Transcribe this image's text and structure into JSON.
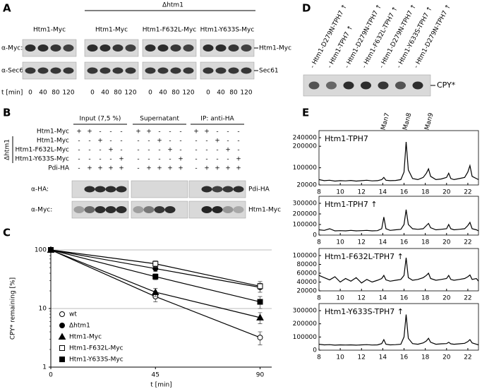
{
  "panel_a": {
    "label": "A",
    "mutant_label": "Δhtm1",
    "groups": [
      "Htm1-Myc",
      "Htm1-Myc",
      "Htm1-F632L-Myc",
      "Htm1-Y633S-Myc"
    ],
    "rows": [
      "α-Myc:",
      "α-Sec61:"
    ],
    "bands": [
      "Htm1-Myc",
      "Sec61"
    ],
    "time_label": "t [min]",
    "times": [
      0,
      40,
      80,
      120
    ]
  },
  "panel_b": {
    "label": "B",
    "groups": [
      "Input (7,5 %)",
      "Supernatant",
      "IP: anti-HA"
    ],
    "mutant_label": "Δhtm1",
    "rows": [
      {
        "name": "Htm1-Myc",
        "signs": [
          "+",
          "+",
          "-",
          "-",
          "-"
        ]
      },
      {
        "name": "Htm1-Myc",
        "signs": [
          "-",
          "-",
          "+",
          "-",
          "-"
        ]
      },
      {
        "name": "Htm1-F632L-Myc",
        "signs": [
          "-",
          "-",
          "-",
          "+",
          "-"
        ]
      },
      {
        "name": "Htm1-Y633S-Myc",
        "signs": [
          "-",
          "-",
          "-",
          "-",
          "+"
        ]
      },
      {
        "name": "Pdi-HA",
        "signs": [
          "-",
          "+",
          "+",
          "+",
          "+"
        ]
      }
    ],
    "blots": [
      "α-HA:",
      "α-Myc:"
    ],
    "bands": [
      "Pdi-HA",
      "Htm1-Myc"
    ]
  },
  "panel_c": {
    "label": "C"
  },
  "panel_d": {
    "label": "D",
    "band": "CPY*",
    "lanes": [
      "- Htm1-D279N-TPH7 ↑",
      "- Htm1-TPH7 ↑",
      "- Htm1-D279N-TPH7 ↑",
      "- Htm1-F632L-TPH7 ↑",
      "- Htm1-D279N-TPH7 ↑",
      "- Htm1-Y633S-TPH7 ↑",
      "- Htm1-D279N-TPH7 ↑"
    ]
  },
  "panel_e": {
    "label": "E",
    "peaks": [
      "Man7",
      "Man8",
      "Man9"
    ]
  },
  "chart_data": [
    {
      "type": "line",
      "x_label": "t [min]",
      "y_label": "CPY* remaining  [%]",
      "log_y": true,
      "grid": true,
      "x": [
        0,
        45,
        90
      ],
      "xlim": [
        0,
        95
      ],
      "xticks": [
        0,
        45,
        90
      ],
      "ylim": [
        1,
        100
      ],
      "yticks": [
        1,
        10,
        100
      ],
      "series": [
        {
          "name": "wt",
          "color": "#000000",
          "marker": "circle",
          "filled": false,
          "values": [
            100,
            16,
            3.2
          ],
          "errors": [
            0,
            3,
            0.8
          ]
        },
        {
          "name": "Δhtm1",
          "color": "#000000",
          "marker": "circle",
          "filled": true,
          "values": [
            100,
            48,
            23
          ],
          "errors": [
            0,
            5,
            4
          ]
        },
        {
          "name": "Htm1-Myc",
          "color": "#000000",
          "marker": "triangle",
          "filled": true,
          "values": [
            100,
            19,
            7
          ],
          "errors": [
            0,
            3,
            1.5
          ]
        },
        {
          "name": "Htm1-F632L-Myc",
          "color": "#000000",
          "marker": "square",
          "filled": false,
          "values": [
            100,
            58,
            24
          ],
          "errors": [
            0,
            7,
            5
          ]
        },
        {
          "name": "Htm1-Y633S-Myc",
          "color": "#000000",
          "marker": "square",
          "filled": true,
          "values": [
            100,
            35,
            13
          ],
          "errors": [
            0,
            4,
            3
          ]
        }
      ]
    },
    {
      "type": "trace",
      "title": "Htm1-TPH7",
      "color": "#000000",
      "xlim": [
        8,
        23
      ],
      "xticks": [
        8,
        10,
        12,
        14,
        16,
        18,
        20,
        22
      ],
      "ylim": [
        20000,
        240000
      ],
      "yticks": [
        20000,
        100000,
        200000,
        240000
      ],
      "x": [
        8,
        8.5,
        9,
        9.5,
        10,
        10.5,
        11,
        11.5,
        12,
        12.5,
        13,
        13.5,
        13.9,
        14.1,
        14.3,
        14.7,
        15.2,
        15.7,
        16.0,
        16.2,
        16.4,
        16.8,
        17.3,
        17.8,
        18.1,
        18.3,
        18.5,
        19,
        19.5,
        20,
        20.2,
        20.4,
        20.7,
        21.2,
        21.7,
        22.0,
        22.2,
        22.4,
        22.8,
        23
      ],
      "values": [
        45000,
        40000,
        42000,
        38000,
        40000,
        39000,
        41000,
        38000,
        40000,
        42000,
        39000,
        40000,
        45000,
        55000,
        42000,
        40000,
        41000,
        45000,
        80000,
        220000,
        90000,
        50000,
        45000,
        55000,
        75000,
        95000,
        60000,
        45000,
        48000,
        55000,
        75000,
        50000,
        45000,
        50000,
        55000,
        80000,
        110000,
        60000,
        50000,
        45000
      ]
    },
    {
      "type": "trace",
      "title": "Htm1-TPH7 ↑",
      "color": "#000000",
      "xlim": [
        8,
        23
      ],
      "xticks": [
        8,
        10,
        12,
        14,
        16,
        18,
        20,
        22
      ],
      "ylim": [
        0,
        300000
      ],
      "yticks": [
        0,
        100000,
        200000,
        300000
      ],
      "x": [
        8,
        8.5,
        9,
        9.5,
        10,
        10.5,
        11,
        11.5,
        12,
        12.5,
        13,
        13.5,
        13.9,
        14.1,
        14.3,
        14.7,
        15.2,
        15.7,
        16.0,
        16.2,
        16.4,
        16.8,
        17.3,
        17.8,
        18.1,
        18.3,
        18.5,
        19,
        19.5,
        20,
        20.2,
        20.4,
        20.7,
        21.2,
        21.7,
        22.0,
        22.2,
        22.4,
        22.8,
        23
      ],
      "values": [
        50000,
        45000,
        60000,
        40000,
        42000,
        40000,
        45000,
        40000,
        42000,
        45000,
        40000,
        42000,
        60000,
        170000,
        60000,
        45000,
        50000,
        55000,
        100000,
        240000,
        100000,
        60000,
        55000,
        60000,
        90000,
        110000,
        70000,
        50000,
        55000,
        60000,
        100000,
        60000,
        50000,
        55000,
        60000,
        90000,
        120000,
        60000,
        50000,
        40000
      ]
    },
    {
      "type": "trace",
      "title": "Htm1-F632L-TPH7 ↑",
      "color": "#000000",
      "xlim": [
        8,
        23
      ],
      "xticks": [
        8,
        10,
        12,
        14,
        16,
        18,
        20,
        22
      ],
      "ylim": [
        20000,
        100000
      ],
      "yticks": [
        20000,
        40000,
        60000,
        80000,
        100000
      ],
      "x": [
        8,
        8.5,
        9,
        9.5,
        10,
        10.5,
        11,
        11.5,
        12,
        12.5,
        13,
        13.5,
        13.9,
        14.1,
        14.3,
        14.7,
        15.2,
        15.7,
        16.0,
        16.2,
        16.4,
        16.8,
        17.3,
        17.8,
        18.1,
        18.3,
        18.5,
        19,
        19.5,
        20,
        20.2,
        20.4,
        20.7,
        21.2,
        21.7,
        22.0,
        22.2,
        22.4,
        22.8,
        23
      ],
      "values": [
        55000,
        50000,
        45000,
        52000,
        40000,
        48000,
        42000,
        50000,
        38000,
        46000,
        40000,
        44000,
        48000,
        55000,
        45000,
        42000,
        44000,
        46000,
        55000,
        95000,
        50000,
        44000,
        46000,
        50000,
        55000,
        60000,
        48000,
        44000,
        46000,
        48000,
        55000,
        46000,
        44000,
        46000,
        48000,
        52000,
        56000,
        46000,
        48000,
        42000
      ]
    },
    {
      "type": "trace",
      "title": "Htm1-Y633S-TPH7 ↑",
      "color": "#000000",
      "xlim": [
        8,
        23
      ],
      "xticks": [
        8,
        10,
        12,
        14,
        16,
        18,
        20,
        22
      ],
      "ylim": [
        0,
        300000
      ],
      "yticks": [
        0,
        100000,
        200000,
        300000
      ],
      "x": [
        8,
        8.5,
        9,
        9.5,
        10,
        10.5,
        11,
        11.5,
        12,
        12.5,
        13,
        13.5,
        13.9,
        14.1,
        14.3,
        14.7,
        15.2,
        15.7,
        16.0,
        16.2,
        16.4,
        16.8,
        17.3,
        17.8,
        18.1,
        18.3,
        18.5,
        19,
        19.5,
        20,
        20.2,
        20.4,
        20.7,
        21.2,
        21.7,
        22.0,
        22.2,
        22.4,
        22.8,
        23
      ],
      "values": [
        45000,
        40000,
        42000,
        38000,
        40000,
        39000,
        40000,
        38000,
        40000,
        42000,
        39000,
        40000,
        50000,
        80000,
        45000,
        40000,
        42000,
        45000,
        100000,
        270000,
        90000,
        50000,
        45000,
        55000,
        70000,
        90000,
        60000,
        45000,
        48000,
        50000,
        60000,
        48000,
        45000,
        48000,
        52000,
        65000,
        80000,
        55000,
        45000,
        40000
      ]
    }
  ]
}
